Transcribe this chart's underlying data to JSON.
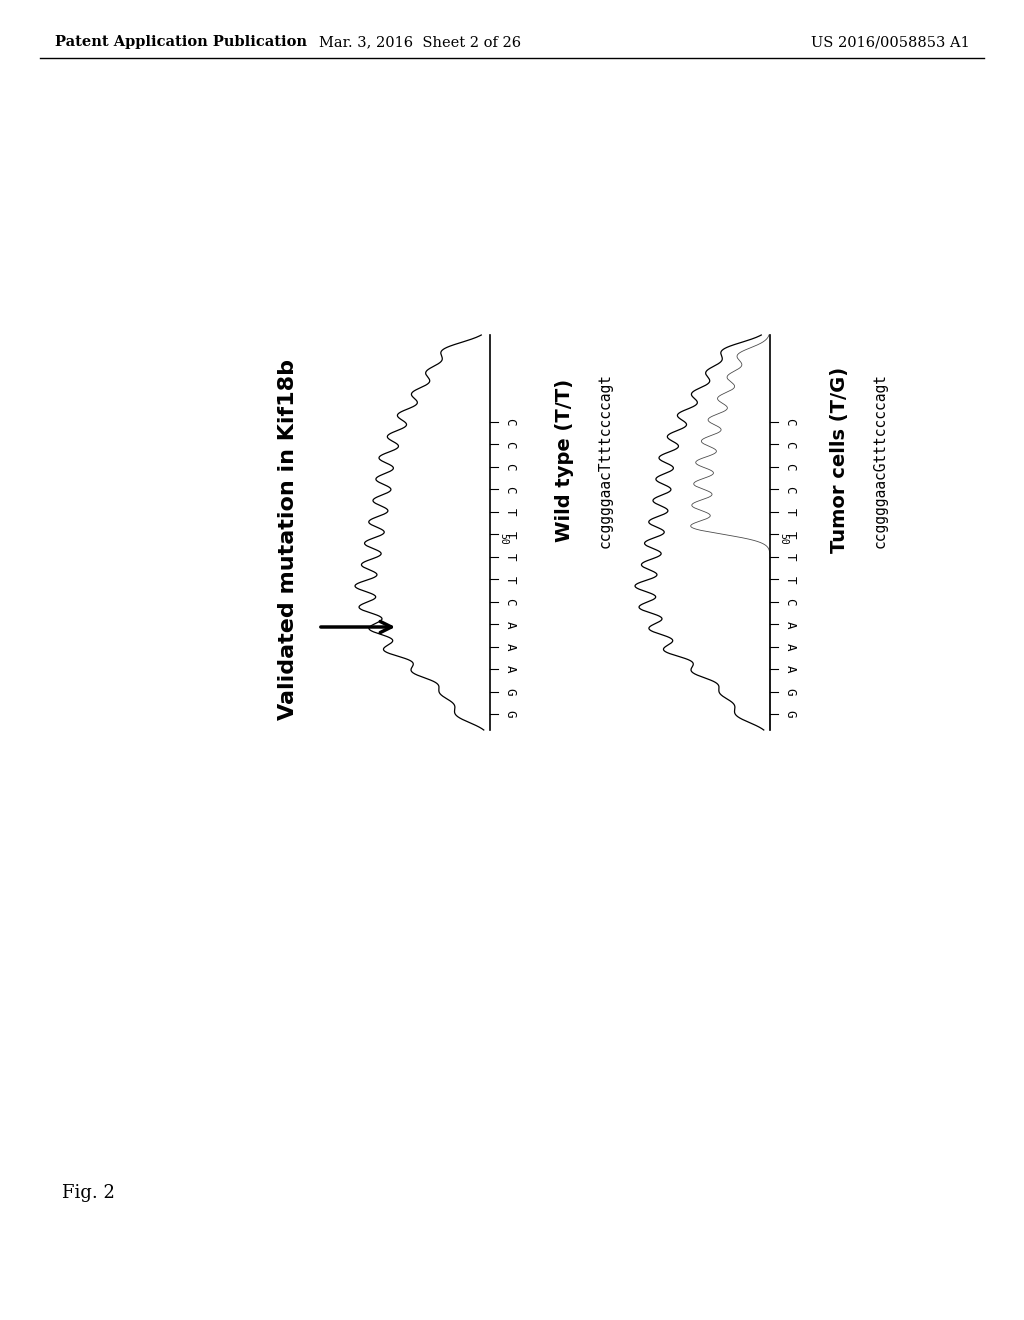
{
  "header_left": "Patent Application Publication",
  "header_center": "Mar. 3, 2016  Sheet 2 of 26",
  "header_right": "US 2016/0058853 A1",
  "fig_label": "Fig. 2",
  "left_label": "Validated mutation in Kif18b",
  "wild_type_label": "Wild type (T/T)",
  "wild_type_seq": "ccggggaacTtttccccagt",
  "tumor_label": "Tumor cells (T/G)",
  "tumor_seq": "ccggggaacGtttccccagt",
  "background_color": "#ffffff",
  "text_color": "#000000",
  "nucleotides_left": [
    "G",
    "G",
    "A",
    "A",
    "A",
    "C",
    "T",
    "T"
  ],
  "nucleotides_right_wt": [
    "T",
    "T",
    "C",
    "C",
    "C",
    "C"
  ],
  "nucleotides_right_tc": [
    "T",
    "T",
    "C",
    "C",
    "C",
    "C"
  ],
  "pos_number_wt": "50",
  "pos_number_tc": "50"
}
